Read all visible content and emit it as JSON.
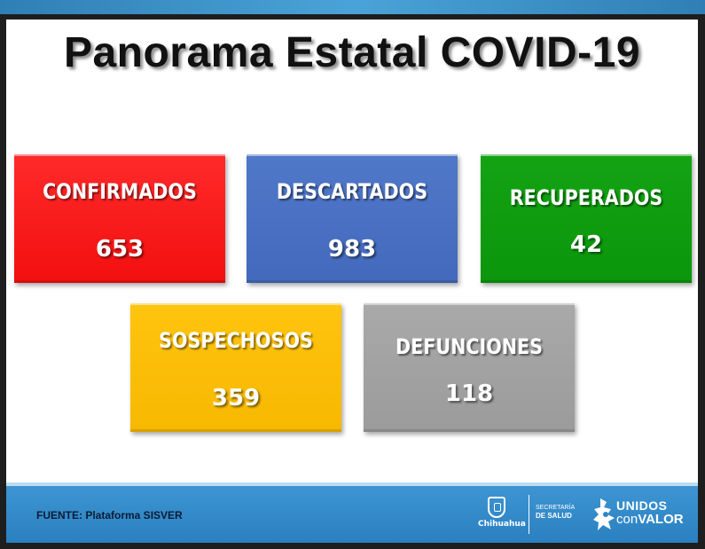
{
  "title": "Panorama Estatal COVID-19",
  "cards": [
    {
      "label": "CONFIRMADOS",
      "value": "653",
      "color": "#f51818"
    },
    {
      "label": "DESCARTADOS",
      "value": "983",
      "color": "#4a70c3"
    },
    {
      "label": "RECUPERADOS",
      "value": "42",
      "color": "#109c10"
    },
    {
      "label": "SOSPECHOSOS",
      "value": "359",
      "color": "#fbbe05"
    },
    {
      "label": "DEFUNCIONES",
      "value": "118",
      "color": "#a3a3a3"
    }
  ],
  "footer": {
    "source": "FUENTE: Plataforma SISVER",
    "logos": {
      "state": "Chihuahua",
      "secretaria_line1": "SECRETARÍA",
      "secretaria_line2": "DE SALUD",
      "campaign_line1": "UNIDOS",
      "campaign_con": "con",
      "campaign_valor": "VALOR"
    },
    "icons": [
      "state-shield-icon",
      "unidos-figure-icon"
    ],
    "colors": {
      "footer_blue": "#2f86c6",
      "top_band": "#3a8fc8"
    }
  }
}
